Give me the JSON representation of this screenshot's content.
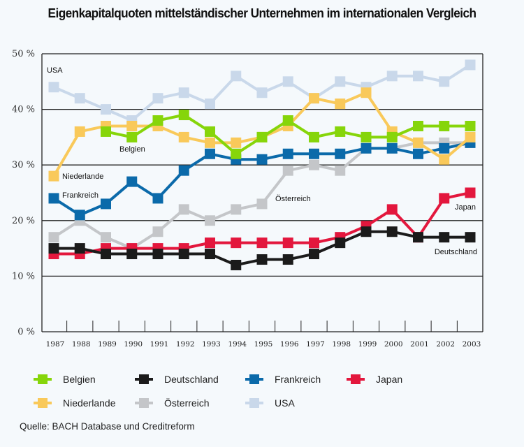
{
  "chart_data": {
    "type": "line",
    "title": "Eigenkapitalquoten mittelständischer Unternehmen im internationalen Vergleich",
    "xlabel": "",
    "ylabel": "",
    "ylim": [
      0,
      50
    ],
    "yticks": [
      {
        "value": 0,
        "label": "0 %"
      },
      {
        "value": 10,
        "label": "10 %"
      },
      {
        "value": 20,
        "label": "20 %"
      },
      {
        "value": 30,
        "label": "30 %"
      },
      {
        "value": 40,
        "label": "40 %"
      },
      {
        "value": 50,
        "label": "50 %"
      }
    ],
    "grid": true,
    "categories": [
      "1987",
      "1988",
      "1989",
      "1990",
      "1991",
      "1992",
      "1993",
      "1994",
      "1995",
      "1996",
      "1997",
      "1998",
      "1999",
      "2000",
      "2001",
      "2002",
      "2003"
    ],
    "series": [
      {
        "name": "USA",
        "color": "#c9d8ea",
        "values": [
          44,
          42,
          40,
          38,
          42,
          43,
          41,
          46,
          43,
          45,
          42,
          45,
          44,
          46,
          46,
          45,
          48
        ]
      },
      {
        "name": "Österreich",
        "color": "#c4c6c9",
        "values": [
          17,
          20,
          17,
          15,
          18,
          22,
          20,
          22,
          23,
          29,
          30,
          29,
          33,
          33,
          34,
          34,
          34
        ]
      },
      {
        "name": "Frankreich",
        "color": "#0b6aaa",
        "values": [
          24,
          21,
          23,
          27,
          24,
          29,
          32,
          31,
          31,
          32,
          32,
          32,
          33,
          33,
          32,
          33,
          34
        ]
      },
      {
        "name": "Niederlande",
        "color": "#f9c95a",
        "values": [
          28,
          36,
          37,
          37,
          37,
          35,
          34,
          34,
          35,
          37,
          42,
          41,
          43,
          36,
          34,
          31,
          35
        ]
      },
      {
        "name": "Belgien",
        "color": "#86d50a",
        "values": [
          null,
          null,
          36,
          35,
          38,
          39,
          36,
          32,
          35,
          38,
          35,
          36,
          35,
          35,
          37,
          37,
          37
        ]
      },
      {
        "name": "Japan",
        "color": "#e3173d",
        "values": [
          14,
          14,
          15,
          15,
          15,
          15,
          16,
          16,
          16,
          16,
          16,
          17,
          19,
          22,
          17,
          24,
          25
        ]
      },
      {
        "name": "Deutschland",
        "color": "#1b1b1b",
        "values": [
          15,
          15,
          14,
          14,
          14,
          14,
          14,
          12,
          13,
          13,
          14,
          16,
          18,
          18,
          17,
          17,
          17
        ]
      }
    ],
    "annotations": [
      {
        "text": "USA",
        "series": "USA"
      },
      {
        "text": "Belgien",
        "series": "Belgien"
      },
      {
        "text": "Niederlande",
        "series": "Niederlande"
      },
      {
        "text": "Frankreich",
        "series": "Frankreich"
      },
      {
        "text": "Österreich",
        "series": "Österreich"
      },
      {
        "text": "Japan",
        "series": "Japan"
      },
      {
        "text": "Deutschland",
        "series": "Deutschland"
      }
    ],
    "legend": {
      "position": "bottom",
      "rows": [
        [
          {
            "label": "Belgien",
            "color": "#86d50a"
          },
          {
            "label": "Deutschland",
            "color": "#1b1b1b"
          },
          {
            "label": "Frankreich",
            "color": "#0b6aaa"
          },
          {
            "label": "Japan",
            "color": "#e3173d"
          }
        ],
        [
          {
            "label": "Niederlande",
            "color": "#f9c95a"
          },
          {
            "label": "Österreich",
            "color": "#c4c6c9"
          },
          {
            "label": "USA",
            "color": "#c9d8ea"
          }
        ]
      ]
    },
    "source": "Quelle: BACH Database und Creditreform"
  }
}
